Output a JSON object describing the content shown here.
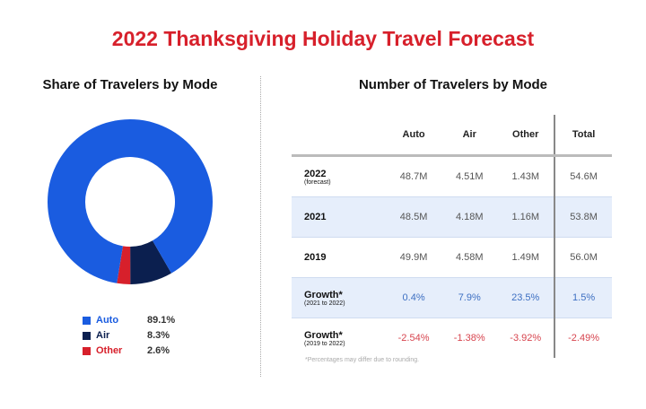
{
  "title": "2022 Thanksgiving Holiday Travel Forecast",
  "chart_data": [
    {
      "type": "pie",
      "donut": true,
      "title": "Share of Travelers by Mode",
      "categories": [
        "Auto",
        "Air",
        "Other"
      ],
      "values": [
        89.1,
        8.3,
        2.6
      ],
      "labels": [
        "89.1%",
        "8.3%",
        "2.6%"
      ],
      "colors": [
        "#1a5ce0",
        "#0b1f4f",
        "#d7202b"
      ],
      "legend": "bottom"
    },
    {
      "type": "table",
      "title": "Number of Travelers by Mode",
      "columns": [
        "",
        "Auto",
        "Air",
        "Other",
        "Total"
      ],
      "rows": [
        {
          "label": "2022",
          "sub": "(forecast)",
          "cells": [
            "48.7M",
            "4.51M",
            "1.43M",
            "54.6M"
          ],
          "cls": ""
        },
        {
          "label": "2021",
          "sub": "",
          "cells": [
            "48.5M",
            "4.18M",
            "1.16M",
            "53.8M"
          ],
          "cls": ""
        },
        {
          "label": "2019",
          "sub": "",
          "cells": [
            "49.9M",
            "4.58M",
            "1.49M",
            "56.0M"
          ],
          "cls": ""
        },
        {
          "label": "Growth*",
          "sub": "(2021 to 2022)",
          "cells": [
            "0.4%",
            "7.9%",
            "23.5%",
            "1.5%"
          ],
          "cls": "pos"
        },
        {
          "label": "Growth*",
          "sub": "(2019 to 2022)",
          "cells": [
            "-2.54%",
            "-1.38%",
            "-3.92%",
            "-2.49%"
          ],
          "cls": "neg"
        }
      ],
      "footnote": "*Percentages may differ due to rounding."
    }
  ]
}
